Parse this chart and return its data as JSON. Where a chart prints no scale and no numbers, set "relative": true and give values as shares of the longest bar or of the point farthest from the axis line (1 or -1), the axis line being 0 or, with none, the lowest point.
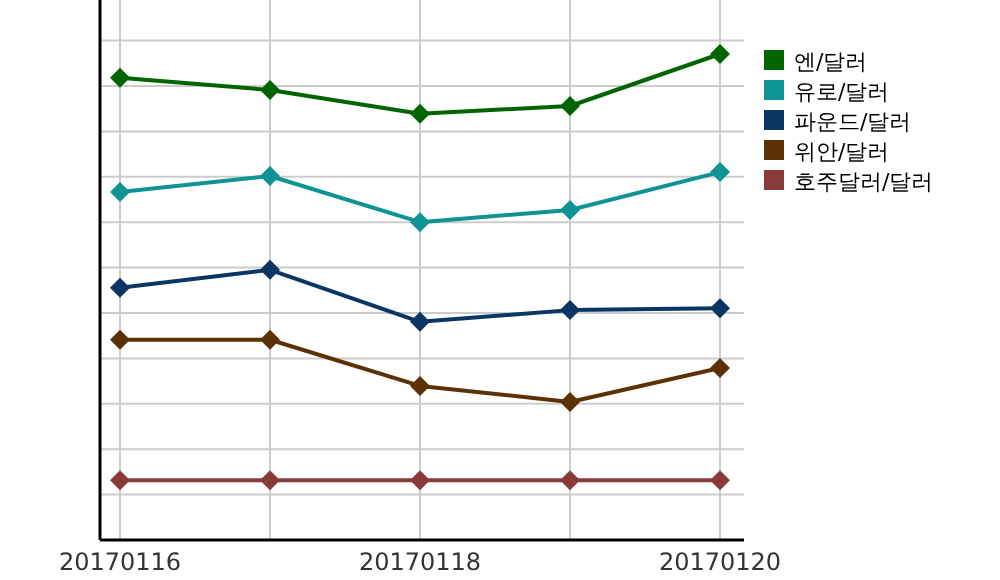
{
  "chart_data": {
    "type": "line",
    "relative": true,
    "categories": [
      "20170116",
      null,
      "20170118",
      null,
      "20170120"
    ],
    "series": [
      {
        "name": "엔/달러",
        "color": "#006400",
        "values": [
          0.951,
          0.926,
          0.877,
          0.893,
          1
        ]
      },
      {
        "name": "유로/달러",
        "color": "#0e9494",
        "values": [
          0.716,
          0.749,
          0.654,
          0.679,
          0.757
        ]
      },
      {
        "name": "파운드/달러",
        "color": "#0b3563",
        "values": [
          0.519,
          0.556,
          0.449,
          0.473,
          0.477
        ]
      },
      {
        "name": "위안/달러",
        "color": "#5c3105",
        "values": [
          0.412,
          0.412,
          0.317,
          0.284,
          0.354
        ]
      },
      {
        "name": "호주달러/달러",
        "color": "#8b3a3a",
        "values": [
          0.123,
          0.123,
          0.123,
          0.123,
          0.123
        ]
      }
    ],
    "marker": "diamond",
    "grid": true,
    "legend": "top right"
  }
}
